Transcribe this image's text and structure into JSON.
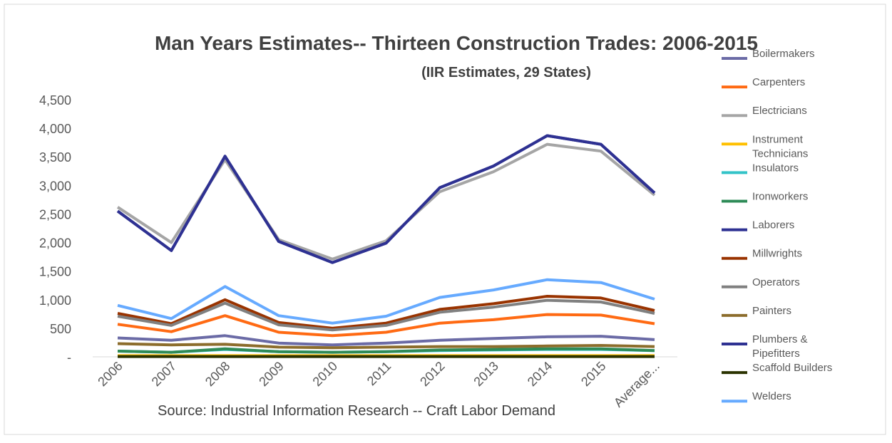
{
  "chart_data": {
    "type": "line",
    "title": "Man Years Estimates-- Thirteen Construction Trades: 2006-2015",
    "subtitle": "(IIR Estimates, 29 States)",
    "annotation": "Source: Industrial Information Research -- Craft Labor Demand",
    "categories": [
      "2006",
      "2007",
      "2008",
      "2009",
      "2010",
      "2011",
      "2012",
      "2013",
      "2014",
      "2015",
      "Average..."
    ],
    "ylim": [
      0,
      4500
    ],
    "yticks": [
      {
        "value": 0,
        "label": "-"
      },
      500,
      {
        "value": 1000,
        "label": "1,000"
      },
      {
        "value": 1500,
        "label": "1,500"
      },
      {
        "value": 2000,
        "label": "2,000"
      },
      {
        "value": 2500,
        "label": "2,500"
      },
      {
        "value": 3000,
        "label": "3,000"
      },
      {
        "value": 3500,
        "label": "3,500"
      },
      {
        "value": 4000,
        "label": "4,000"
      },
      {
        "value": 4500,
        "label": "4,500"
      }
    ],
    "grid": false,
    "legend": "right",
    "series": [
      {
        "name": "Boilermakers",
        "color": "#6b6ba6",
        "values": [
          330,
          290,
          370,
          240,
          210,
          240,
          290,
          320,
          350,
          360,
          300
        ]
      },
      {
        "name": "Carpenters",
        "color": "#ff6a13",
        "values": [
          570,
          440,
          720,
          430,
          370,
          430,
          590,
          650,
          740,
          730,
          580
        ]
      },
      {
        "name": "Electricians",
        "color": "#a5a5a5",
        "values": [
          2620,
          2000,
          3450,
          2050,
          1710,
          2030,
          2890,
          3240,
          3720,
          3600,
          2830
        ]
      },
      {
        "name": "Instrument Technicians",
        "color": "#ffc000",
        "values": [
          20,
          20,
          20,
          20,
          20,
          20,
          20,
          20,
          20,
          20,
          20
        ]
      },
      {
        "name": "Insulators",
        "color": "#33c3c8",
        "values": [
          100,
          80,
          130,
          90,
          80,
          90,
          110,
          120,
          130,
          130,
          110
        ]
      },
      {
        "name": "Ironworkers",
        "color": "#2e8b57",
        "values": [
          100,
          80,
          140,
          90,
          80,
          90,
          120,
          130,
          140,
          140,
          110
        ]
      },
      {
        "name": "Laborers",
        "color": "#2e3192",
        "values": [
          2550,
          1860,
          3510,
          2020,
          1650,
          1990,
          2960,
          3340,
          3870,
          3720,
          2870
        ]
      },
      {
        "name": "Millwrights",
        "color": "#993300",
        "values": [
          760,
          580,
          1000,
          600,
          500,
          590,
          830,
          930,
          1060,
          1030,
          810
        ]
      },
      {
        "name": "Operators",
        "color": "#808080",
        "values": [
          710,
          550,
          940,
          560,
          470,
          550,
          780,
          870,
          990,
          960,
          760
        ]
      },
      {
        "name": "Painters",
        "color": "#8c6d2c",
        "values": [
          230,
          210,
          220,
          170,
          160,
          170,
          180,
          180,
          190,
          200,
          180
        ]
      },
      {
        "name": "Plumbers & Pipefitters",
        "color": "#2e3192",
        "values": [
          2550,
          1860,
          3510,
          2020,
          1650,
          1990,
          2960,
          3340,
          3870,
          3720,
          2870
        ]
      },
      {
        "name": "Scaffold Builders",
        "color": "#2b3300",
        "values": [
          5,
          5,
          5,
          5,
          5,
          5,
          5,
          5,
          5,
          5,
          5
        ]
      },
      {
        "name": "Welders",
        "color": "#66aaff",
        "values": [
          900,
          670,
          1230,
          720,
          590,
          710,
          1040,
          1170,
          1350,
          1300,
          1010
        ]
      }
    ]
  }
}
